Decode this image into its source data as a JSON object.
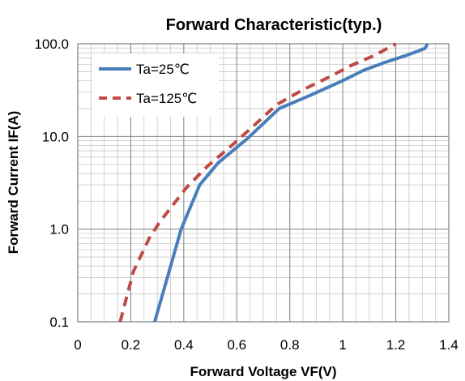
{
  "chart_data": {
    "type": "line",
    "title": "Forward Characteristic(typ.)",
    "xlabel": "Forward Voltage VF(V)",
    "ylabel": "Forward Current IF(A)",
    "xlim": [
      0,
      1.4
    ],
    "ylim": [
      0.1,
      100
    ],
    "yscale": "log",
    "xticks": [
      "0",
      "0.2",
      "0.4",
      "0.6",
      "0.8",
      "1",
      "1.2",
      "1.4"
    ],
    "xtick_values": [
      0,
      0.2,
      0.4,
      0.6,
      0.8,
      1.0,
      1.2,
      1.4
    ],
    "yticks": [
      "0.1",
      "1.0",
      "10.0",
      "100.0"
    ],
    "ytick_values": [
      0.1,
      1,
      10,
      100
    ],
    "grid": true,
    "legend_position": "top-left",
    "series": [
      {
        "name": "Ta=25℃",
        "color": "#4a7ebb",
        "style": "solid",
        "x": [
          0.29,
          0.33,
          0.36,
          0.39,
          0.46,
          0.53,
          0.64,
          0.76,
          0.88,
          1.0,
          1.08,
          1.16,
          1.24,
          1.31,
          1.32
        ],
        "y": [
          0.1,
          0.25,
          0.5,
          1.0,
          3.0,
          5.2,
          9.5,
          20,
          28,
          40,
          52,
          63,
          75,
          89,
          100
        ]
      },
      {
        "name": "Ta=125℃",
        "color": "#be4b48",
        "style": "dashed",
        "x": [
          0.16,
          0.21,
          0.27,
          0.31,
          0.41,
          0.49,
          0.57,
          0.65,
          0.75,
          0.85,
          0.95,
          1.03,
          1.12,
          1.2
        ],
        "y": [
          0.1,
          0.35,
          0.8,
          1.2,
          2.8,
          4.8,
          7.5,
          12,
          22,
          32,
          44,
          58,
          75,
          100
        ]
      }
    ]
  }
}
